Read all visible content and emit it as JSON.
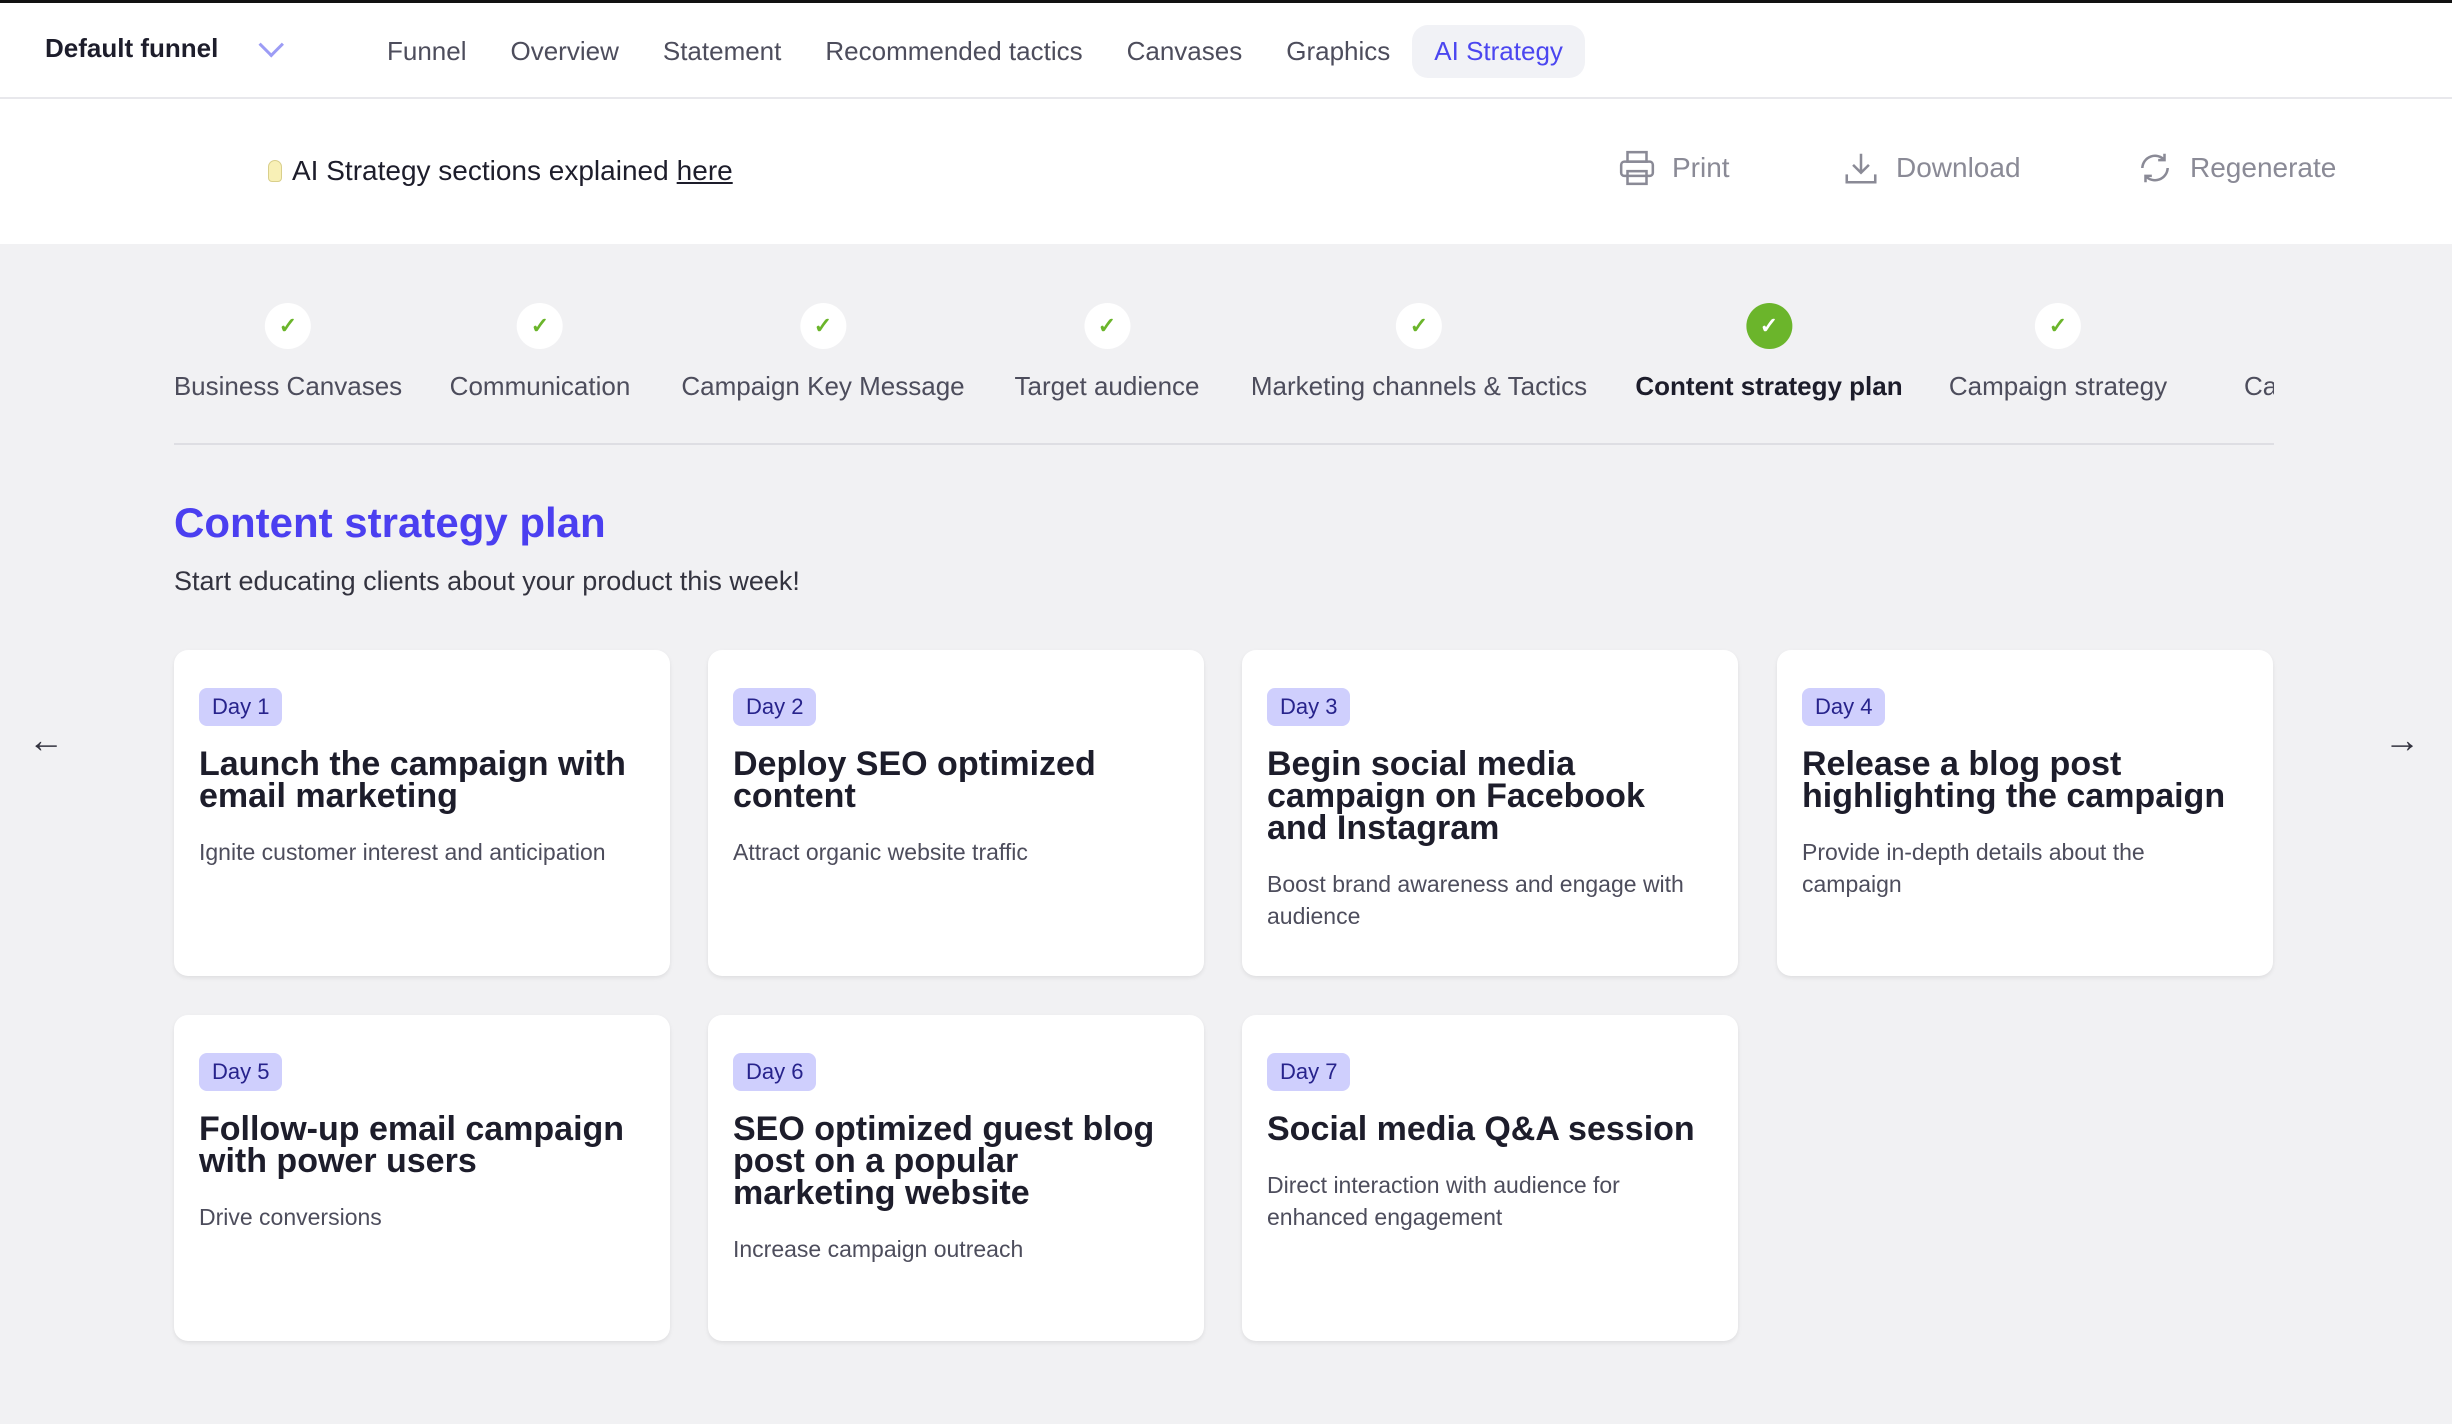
{
  "nav": {
    "funnel": "Default funnel",
    "tabs": [
      "Funnel",
      "Overview",
      "Statement",
      "Recommended tactics",
      "Canvases",
      "Graphics",
      "AI Strategy"
    ],
    "active": "AI Strategy"
  },
  "info": {
    "text": "AI Strategy sections explained",
    "link": "here"
  },
  "actions": {
    "print": "Print",
    "download": "Download",
    "regenerate": "Regenerate"
  },
  "steps": [
    {
      "label": "Business Canvases",
      "done": true
    },
    {
      "label": "Communication",
      "done": true
    },
    {
      "label": "Campaign Key Message",
      "done": true
    },
    {
      "label": "Target audience",
      "done": true
    },
    {
      "label": "Marketing channels & Tactics",
      "done": true
    },
    {
      "label": "Content strategy plan",
      "done": true,
      "current": true
    },
    {
      "label": "Campaign strategy",
      "done": true
    },
    {
      "label": "Cam",
      "done": false
    }
  ],
  "section": {
    "title": "Content strategy plan",
    "subtitle": "Start educating clients about your product this week!"
  },
  "cards": [
    {
      "day": "Day 1",
      "title": "Launch the campaign with email marketing",
      "desc": "Ignite customer interest and anticipation"
    },
    {
      "day": "Day 2",
      "title": "Deploy SEO optimized content",
      "desc": "Attract organic website traffic"
    },
    {
      "day": "Day 3",
      "title": "Begin social media campaign on Facebook and Instagram",
      "desc": "Boost brand awareness and engage with audience"
    },
    {
      "day": "Day 4",
      "title": "Release a blog post highlighting the campaign",
      "desc": "Provide in-depth details about the campaign"
    },
    {
      "day": "Day 5",
      "title": "Follow-up email campaign with power users",
      "desc": "Drive conversions"
    },
    {
      "day": "Day 6",
      "title": "SEO optimized guest blog post on a popular marketing website",
      "desc": "Increase campaign outreach"
    },
    {
      "day": "Day 7",
      "title": "Social media Q&A session",
      "desc": "Direct interaction with audience for enhanced engagement"
    }
  ],
  "colors": {
    "accent": "#4b3ff0",
    "success": "#6bb52b",
    "badge": "#cfcffd"
  }
}
